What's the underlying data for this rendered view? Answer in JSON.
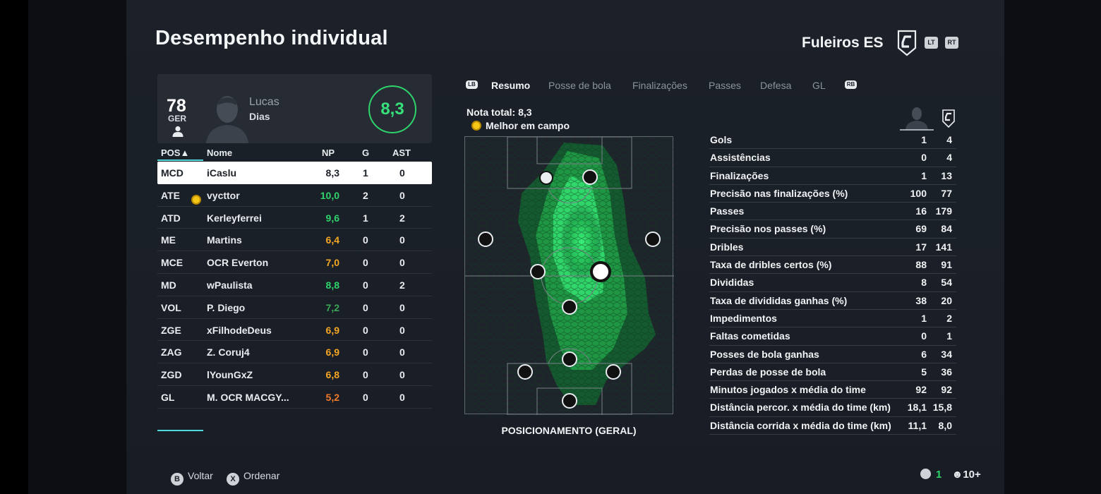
{
  "header": {
    "title": "Desempenho individual",
    "team_name": "Fuleiros ES",
    "lt_label": "LT",
    "rt_label": "RT"
  },
  "player_card": {
    "overall": "78",
    "position": "GER",
    "first_name": "Lucas",
    "last_name": "Dias",
    "rating": "8,3"
  },
  "table": {
    "headers": {
      "pos": "POS▲",
      "name": "Nome",
      "np": "NP",
      "g": "G",
      "ast": "AST"
    },
    "rows": [
      {
        "pos": "MCD",
        "name": "iCaslu",
        "np": "8,3",
        "g": "1",
        "ast": "0",
        "np_color": "#1b1f26",
        "motm": false
      },
      {
        "pos": "ATE",
        "name": "vycttor",
        "np": "10,0",
        "g": "2",
        "ast": "0",
        "np_color": "#2fd36b",
        "motm": true
      },
      {
        "pos": "ATD",
        "name": "Kerleyferrei",
        "np": "9,6",
        "g": "1",
        "ast": "2",
        "np_color": "#2fd36b",
        "motm": false
      },
      {
        "pos": "ME",
        "name": "Martins",
        "np": "6,4",
        "g": "0",
        "ast": "0",
        "np_color": "#f5a623",
        "motm": false
      },
      {
        "pos": "MCE",
        "name": "OCR Everton",
        "np": "7,0",
        "g": "0",
        "ast": "0",
        "np_color": "#f5a623",
        "motm": false
      },
      {
        "pos": "MD",
        "name": "wPaulista",
        "np": "8,8",
        "g": "0",
        "ast": "2",
        "np_color": "#2fd36b",
        "motm": false
      },
      {
        "pos": "VOL",
        "name": "P. Diego",
        "np": "7,2",
        "g": "0",
        "ast": "0",
        "np_color": "#3aa855",
        "motm": false
      },
      {
        "pos": "ZGE",
        "name": "xFilhodeDeus",
        "np": "6,9",
        "g": "0",
        "ast": "0",
        "np_color": "#f5a623",
        "motm": false
      },
      {
        "pos": "ZAG",
        "name": "Z. Coruj4",
        "np": "6,9",
        "g": "0",
        "ast": "0",
        "np_color": "#f5a623",
        "motm": false
      },
      {
        "pos": "ZGD",
        "name": "lYounGxZ",
        "np": "6,8",
        "g": "0",
        "ast": "0",
        "np_color": "#f5a623",
        "motm": false
      },
      {
        "pos": "GL",
        "name": "M. OCR MACGY...",
        "np": "5,2",
        "g": "0",
        "ast": "0",
        "np_color": "#f07a2a",
        "motm": false
      }
    ]
  },
  "tabs": {
    "lb": "LB",
    "rb": "RB",
    "items": [
      "Resumo",
      "Posse de bola",
      "Finalizações",
      "Passes",
      "Defesa",
      "GL"
    ],
    "active": "Resumo"
  },
  "summary": {
    "nota_total": "Nota total: 8,3",
    "motm": "Melhor em campo",
    "pitch_label": "POSICIONAMENTO (GERAL)"
  },
  "stats": [
    {
      "label": "Gols",
      "player": "1",
      "team": "4"
    },
    {
      "label": "Assistências",
      "player": "0",
      "team": "4"
    },
    {
      "label": "Finalizações",
      "player": "1",
      "team": "13"
    },
    {
      "label": "Precisão nas finalizações (%)",
      "player": "100",
      "team": "77"
    },
    {
      "label": "Passes",
      "player": "16",
      "team": "179"
    },
    {
      "label": "Precisão nos passes (%)",
      "player": "69",
      "team": "84"
    },
    {
      "label": "Dribles",
      "player": "17",
      "team": "141"
    },
    {
      "label": "Taxa de dribles certos (%)",
      "player": "88",
      "team": "91"
    },
    {
      "label": "Divididas",
      "player": "8",
      "team": "54"
    },
    {
      "label": "Taxa de divididas ganhas (%)",
      "player": "38",
      "team": "20"
    },
    {
      "label": "Impedimentos",
      "player": "1",
      "team": "2"
    },
    {
      "label": "Faltas cometidas",
      "player": "0",
      "team": "1"
    },
    {
      "label": "Posses de bola ganhas",
      "player": "6",
      "team": "34"
    },
    {
      "label": "Perdas de posse de bola",
      "player": "5",
      "team": "36"
    },
    {
      "label": "Minutos jogados x média do time",
      "player": "92",
      "team": "92"
    },
    {
      "label": "Distância percor. x média do time (km)",
      "player": "18,1",
      "team": "15,8"
    },
    {
      "label": "Distância corrida x média do time (km)",
      "player": "11,1",
      "team": "8,0"
    }
  ],
  "footer": {
    "back_glyph": "B",
    "back_label": "Voltar",
    "sort_glyph": "X",
    "sort_label": "Ordenar",
    "count": "1",
    "players": "10+"
  },
  "colors": {
    "accent": "#2fd36b",
    "underline": "#4fd9d9",
    "warning": "#f5a623"
  }
}
